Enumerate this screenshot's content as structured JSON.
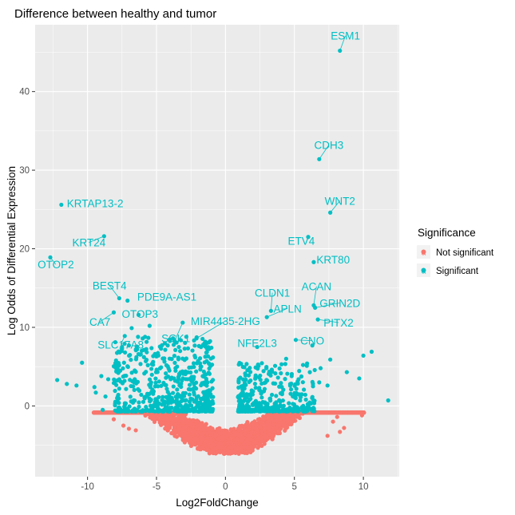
{
  "chart_data": {
    "type": "scatter",
    "title": "Difference between healthy and tumor",
    "xlabel": "Log2FoldChange",
    "ylabel": "Log Odds of Differential Expression",
    "xlim": [
      -13.8,
      12.6
    ],
    "ylim": [
      -9.0,
      48.5
    ],
    "xticks": [
      -10,
      -5,
      0,
      5,
      10
    ],
    "yticks": [
      0,
      10,
      20,
      30,
      40
    ],
    "grid": true,
    "legend": {
      "title": "Significance",
      "placement": "right",
      "entries": [
        {
          "name": "Not significant",
          "color": "#F8766D"
        },
        {
          "name": "Significant",
          "color": "#00BFC4"
        }
      ]
    },
    "colors": {
      "not_significant": "#F8766D",
      "significant": "#00BFC4",
      "panel": "#EBEBEB",
      "grid": "#FFFFFF"
    },
    "labeled_points": [
      {
        "label": "ESM1",
        "x": 8.3,
        "y": 45.2,
        "lx": 8.7,
        "ly": 46.6,
        "anchor": "middle"
      },
      {
        "label": "CDH3",
        "x": 6.8,
        "y": 31.4,
        "lx": 7.5,
        "ly": 32.7,
        "anchor": "middle"
      },
      {
        "label": "WNT2",
        "x": 7.6,
        "y": 24.6,
        "lx": 8.3,
        "ly": 25.6,
        "anchor": "middle"
      },
      {
        "label": "KRTAP13-2",
        "x": -11.9,
        "y": 25.6,
        "lx": -11.5,
        "ly": 25.3,
        "anchor": "start"
      },
      {
        "label": "KRT24",
        "x": -8.8,
        "y": 21.6,
        "lx": -9.9,
        "ly": 20.3,
        "anchor": "middle"
      },
      {
        "label": "OTOP2",
        "x": -12.7,
        "y": 18.9,
        "lx": -12.3,
        "ly": 17.5,
        "anchor": "middle"
      },
      {
        "label": "ETV4",
        "x": 6.0,
        "y": 21.5,
        "lx": 5.5,
        "ly": 20.5,
        "anchor": "middle"
      },
      {
        "label": "KRT80",
        "x": 6.4,
        "y": 18.3,
        "lx": 6.6,
        "ly": 18.1,
        "anchor": "start"
      },
      {
        "label": "BEST4",
        "x": -7.7,
        "y": 13.7,
        "lx": -8.4,
        "ly": 14.8,
        "anchor": "middle"
      },
      {
        "label": "PDE9A-AS1",
        "x": -7.1,
        "y": 13.4,
        "lx": -6.4,
        "ly": 13.4,
        "anchor": "start"
      },
      {
        "label": "OTOP3",
        "x": -6.3,
        "y": 11.6,
        "lx": -6.2,
        "ly": 11.2,
        "anchor": "middle"
      },
      {
        "label": "CA7",
        "x": -8.1,
        "y": 11.9,
        "lx": -9.1,
        "ly": 10.2,
        "anchor": "middle"
      },
      {
        "label": "SLC17A8",
        "x": -7.3,
        "y": 8.9,
        "lx": -7.6,
        "ly": 7.3,
        "anchor": "middle"
      },
      {
        "label": "SGK1",
        "x": -3.1,
        "y": 10.6,
        "lx": -3.6,
        "ly": 8.1,
        "anchor": "middle"
      },
      {
        "label": "MIR4435-2HG",
        "x": -2.1,
        "y": 8.6,
        "lx": 0.0,
        "ly": 10.3,
        "anchor": "middle"
      },
      {
        "label": "CLDN1",
        "x": 3.3,
        "y": 12.1,
        "lx": 3.4,
        "ly": 13.9,
        "anchor": "middle"
      },
      {
        "label": "APLN",
        "x": 3.0,
        "y": 11.3,
        "lx": 4.5,
        "ly": 11.9,
        "anchor": "middle"
      },
      {
        "label": "ACAN",
        "x": 6.4,
        "y": 12.8,
        "lx": 6.6,
        "ly": 14.7,
        "anchor": "middle"
      },
      {
        "label": "GRIN2D",
        "x": 6.5,
        "y": 12.5,
        "lx": 8.3,
        "ly": 12.6,
        "anchor": "middle"
      },
      {
        "label": "PITX2",
        "x": 6.7,
        "y": 11.0,
        "lx": 8.2,
        "ly": 10.1,
        "anchor": "middle"
      },
      {
        "label": "NFE2L3",
        "x": 2.3,
        "y": 7.5,
        "lx": 2.3,
        "ly": 7.5,
        "anchor": "middle"
      },
      {
        "label": "CNO",
        "x": 5.1,
        "y": 8.4,
        "lx": 6.3,
        "ly": 7.8,
        "anchor": "middle"
      }
    ],
    "extra_points": [
      {
        "x": -10.4,
        "y": 5.5
      },
      {
        "x": -11.5,
        "y": 2.8
      },
      {
        "x": -9.0,
        "y": 3.8
      },
      {
        "x": -9.5,
        "y": 2.4
      },
      {
        "x": -8.7,
        "y": 1.2
      },
      {
        "x": -8.5,
        "y": 3.4
      },
      {
        "x": -7.9,
        "y": 4.5
      },
      {
        "x": -7.7,
        "y": 2.2
      },
      {
        "x": -8.9,
        "y": -0.5
      },
      {
        "x": -8.0,
        "y": 0.3
      },
      {
        "x": -6.8,
        "y": 9.9
      },
      {
        "x": -6.4,
        "y": 7.2
      },
      {
        "x": -5.5,
        "y": 10.2
      },
      {
        "x": -7.0,
        "y": 7.7
      },
      {
        "x": -5.0,
        "y": 6.3
      },
      {
        "x": 10.6,
        "y": 6.9
      },
      {
        "x": 10.0,
        "y": 6.4
      },
      {
        "x": 9.7,
        "y": 3.5
      },
      {
        "x": 11.8,
        "y": 0.7
      },
      {
        "x": 8.8,
        "y": 4.3
      },
      {
        "x": 7.6,
        "y": 5.9
      },
      {
        "x": 6.3,
        "y": 7.7
      },
      {
        "x": 5.9,
        "y": 5.1
      },
      {
        "x": 4.4,
        "y": 6.0
      },
      {
        "x": 3.6,
        "y": 5.1
      },
      {
        "x": 4.8,
        "y": 3.8
      },
      {
        "x": 6.8,
        "y": 3.0
      },
      {
        "x": 7.4,
        "y": 2.6
      },
      {
        "x": 6.9,
        "y": 4.8
      },
      {
        "x": 5.3,
        "y": 3.4
      },
      {
        "x": -10.8,
        "y": 2.6
      },
      {
        "x": -12.2,
        "y": 3.3
      },
      {
        "x": -9.4,
        "y": 1.7
      }
    ],
    "bulk_distribution": {
      "significance_threshold_y": -0.8,
      "min_y": -6.1,
      "x_spread_neg": 9.5,
      "x_spread_pos": 10.0,
      "sparse_red_outliers": [
        {
          "x": -8.1,
          "y": -1.7
        },
        {
          "x": -7.4,
          "y": -2.5
        },
        {
          "x": -7.0,
          "y": -2.9
        },
        {
          "x": 8.1,
          "y": -1.4
        },
        {
          "x": 8.6,
          "y": -2.8
        },
        {
          "x": 9.9,
          "y": -1.2
        },
        {
          "x": 8.3,
          "y": -3.3
        },
        {
          "x": 7.4,
          "y": -3.8
        },
        {
          "x": -6.5,
          "y": -3.1
        },
        {
          "x": 7.8,
          "y": -2.0
        }
      ]
    }
  }
}
